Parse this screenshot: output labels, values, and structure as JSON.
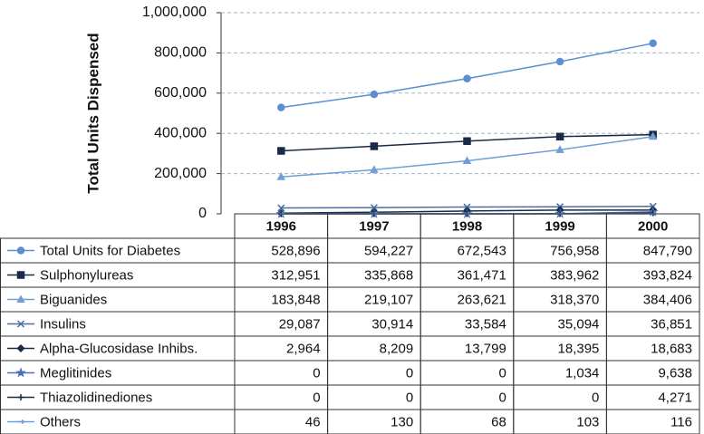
{
  "chart_data": {
    "type": "line",
    "y_label": "Total Units Dispensed",
    "categories": [
      "1996",
      "1997",
      "1998",
      "1999",
      "2000"
    ],
    "ylim": [
      0,
      1000000
    ],
    "yticks": [
      0,
      {
        "value": 200000,
        "label": "200,000"
      },
      {
        "value": 400000,
        "label": "400,000"
      },
      {
        "value": 600000,
        "label": "600,000"
      },
      {
        "value": 800000,
        "label": "800,000"
      },
      {
        "value": 1000000,
        "label": "1,000,000"
      }
    ],
    "grid": true,
    "series": [
      {
        "name": "Total Units for Diabetes",
        "color": "#5b8fd0",
        "marker": "circle",
        "values": [
          528896,
          594227,
          672543,
          756958,
          847790
        ],
        "value_labels": [
          "528,896",
          "594,227",
          "672,543",
          "756,958",
          "847,790"
        ]
      },
      {
        "name": "Sulphonylureas",
        "color": "#1b2a48",
        "marker": "square",
        "values": [
          312951,
          335868,
          361471,
          383962,
          393824
        ],
        "value_labels": [
          "312,951",
          "335,868",
          "361,471",
          "383,962",
          "393,824"
        ]
      },
      {
        "name": "Biguanides",
        "color": "#6f9fd8",
        "marker": "triangle",
        "values": [
          183848,
          219107,
          263621,
          318370,
          384406
        ],
        "value_labels": [
          "183,848",
          "219,107",
          "263,621",
          "318,370",
          "384,406"
        ]
      },
      {
        "name": "Insulins",
        "color": "#4a6fa5",
        "marker": "x",
        "values": [
          29087,
          30914,
          33584,
          35094,
          36851
        ],
        "value_labels": [
          "29,087",
          "30,914",
          "33,584",
          "35,094",
          "36,851"
        ]
      },
      {
        "name": "Alpha-Glucosidase Inhibs.",
        "color": "#1b2a48",
        "marker": "diamond",
        "values": [
          2964,
          8209,
          13799,
          18395,
          18683
        ],
        "value_labels": [
          "2,964",
          "8,209",
          "13,799",
          "18,395",
          "18,683"
        ]
      },
      {
        "name": "Meglitinides",
        "color": "#4a72b0",
        "marker": "star",
        "values": [
          0,
          0,
          0,
          1034,
          9638
        ],
        "value_labels": [
          "0",
          "0",
          "0",
          "1,034",
          "9,638"
        ]
      },
      {
        "name": "Thiazolidinediones",
        "color": "#1b2a48",
        "marker": "plus",
        "values": [
          0,
          0,
          0,
          0,
          4271
        ],
        "value_labels": [
          "0",
          "0",
          "0",
          "0",
          "4,271"
        ]
      },
      {
        "name": "Others",
        "color": "#6f9fd8",
        "marker": "dash",
        "values": [
          46,
          130,
          68,
          103,
          116
        ],
        "value_labels": [
          "46",
          "130",
          "68",
          "103",
          "116"
        ]
      }
    ]
  }
}
